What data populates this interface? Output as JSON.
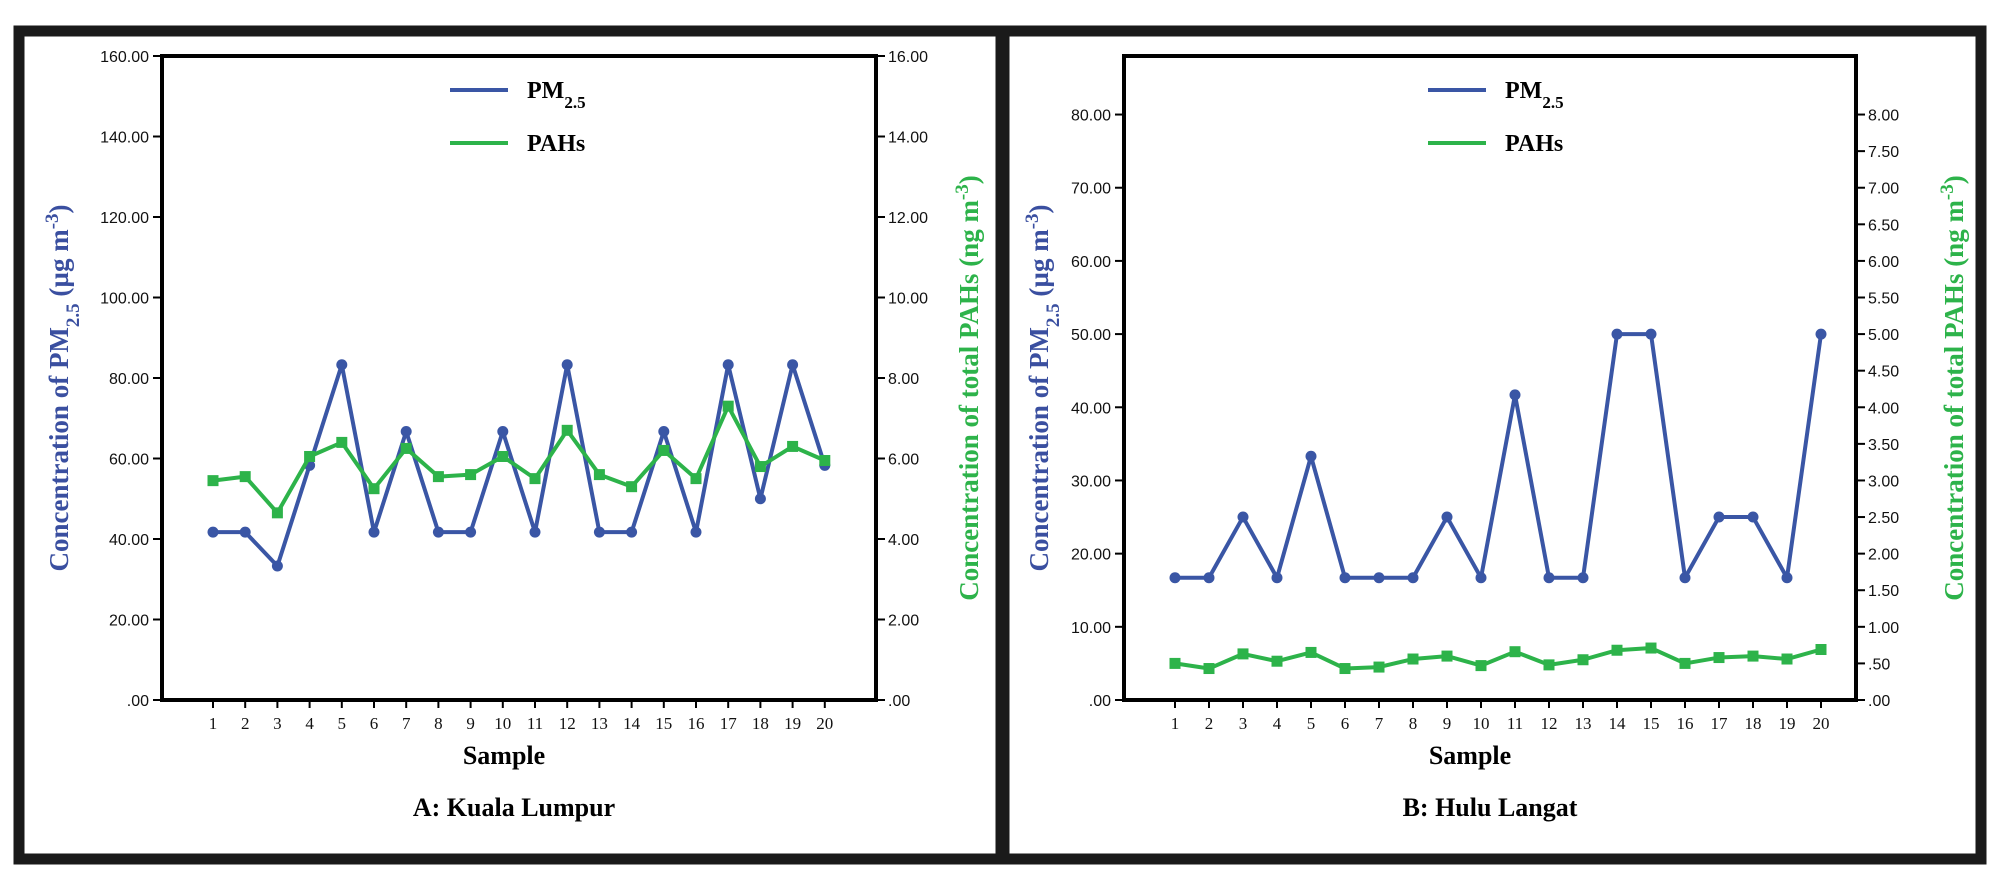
{
  "chart_data": [
    {
      "type": "line",
      "panel_caption": "A: Kuala Lumpur",
      "xlabel": "Sample",
      "ylabel_left": "Concentration of PM2.5 (µg m-3)",
      "ylabel_left_parts": {
        "pre": "Concentration of PM",
        "sub": "2.5",
        "mid": " (µg m",
        "sup": "-3",
        "post": ")"
      },
      "ylabel_right": "Concentration of total PAHs (ng m-3)",
      "ylabel_right_parts": {
        "pre": "Concentration of total PAHs (ng m",
        "sup": "-3",
        "post": ")"
      },
      "categories": [
        "1",
        "2",
        "3",
        "4",
        "5",
        "6",
        "7",
        "8",
        "9",
        "10",
        "11",
        "12",
        "13",
        "14",
        "15",
        "16",
        "17",
        "18",
        "19",
        "20"
      ],
      "ylim_left": [
        0,
        160
      ],
      "ylim_right": [
        0,
        16
      ],
      "yticks_left": [
        ".00",
        "20.00",
        "40.00",
        "60.00",
        "80.00",
        "100.00",
        "120.00",
        "140.00",
        "160.00"
      ],
      "yticks_right": [
        ".00",
        "2.00",
        "4.00",
        "6.00",
        "8.00",
        "10.00",
        "12.00",
        "14.00",
        "16.00"
      ],
      "legend_placement": "top-center",
      "series": [
        {
          "name": "PM2.5",
          "name_parts": {
            "pre": "PM",
            "sub": "2.5"
          },
          "axis": "left",
          "color": "#3a56a5",
          "marker": "circle",
          "values": [
            41.7,
            41.7,
            33.3,
            58.3,
            83.3,
            41.7,
            66.7,
            41.7,
            41.7,
            66.7,
            41.7,
            83.3,
            41.7,
            41.7,
            66.7,
            41.7,
            83.3,
            50.0,
            83.3,
            58.3
          ]
        },
        {
          "name": "PAHs",
          "axis": "right",
          "color": "#2db34a",
          "marker": "square",
          "values": [
            5.45,
            5.55,
            4.65,
            6.05,
            6.4,
            5.25,
            6.25,
            5.55,
            5.6,
            6.05,
            5.5,
            6.7,
            5.6,
            5.3,
            6.2,
            5.5,
            7.3,
            5.8,
            6.3,
            5.95
          ]
        }
      ]
    },
    {
      "type": "line",
      "panel_caption": "B: Hulu Langat",
      "xlabel": "Sample",
      "ylabel_left": "Concentration of PM2.5 (µg m-3)",
      "ylabel_left_parts": {
        "pre": "Concentration of PM",
        "sub": "2.5",
        "mid": " (µg m",
        "sup": "-3",
        "post": ")"
      },
      "ylabel_right": "Concentration of total PAHs (ng m-3)",
      "ylabel_right_parts": {
        "pre": "Concentration of total PAHs (ng m",
        "sup": "-3",
        "post": ")"
      },
      "categories": [
        "1",
        "2",
        "3",
        "4",
        "5",
        "6",
        "7",
        "8",
        "9",
        "10",
        "11",
        "12",
        "13",
        "14",
        "15",
        "16",
        "17",
        "18",
        "19",
        "20"
      ],
      "ylim_left": [
        0,
        88
      ],
      "ylim_right": [
        0,
        8.8
      ],
      "yticks_left": [
        ".00",
        "10.00",
        "20.00",
        "30.00",
        "40.00",
        "50.00",
        "60.00",
        "70.00",
        "80.00"
      ],
      "yticks_right": [
        ".00",
        ".50",
        "1.00",
        "1.50",
        "2.00",
        "2.50",
        "3.00",
        "3.50",
        "4.00",
        "4.50",
        "5.00",
        "5.50",
        "6.00",
        "6.50",
        "7.00",
        "7.50",
        "8.00"
      ],
      "legend_placement": "top-center",
      "series": [
        {
          "name": "PM2.5",
          "name_parts": {
            "pre": "PM",
            "sub": "2.5"
          },
          "axis": "left",
          "color": "#3a56a5",
          "marker": "circle",
          "values": [
            16.7,
            16.7,
            25.0,
            16.7,
            33.3,
            16.7,
            16.7,
            16.7,
            25.0,
            16.7,
            41.7,
            16.7,
            16.7,
            50.0,
            50.0,
            16.7,
            25.0,
            25.0,
            16.7,
            50.0
          ]
        },
        {
          "name": "PAHs",
          "axis": "right",
          "color": "#2db34a",
          "marker": "square",
          "values": [
            0.5,
            0.43,
            0.63,
            0.53,
            0.65,
            0.43,
            0.45,
            0.56,
            0.6,
            0.47,
            0.66,
            0.48,
            0.55,
            0.68,
            0.71,
            0.5,
            0.58,
            0.6,
            0.56,
            0.69
          ]
        }
      ]
    }
  ]
}
